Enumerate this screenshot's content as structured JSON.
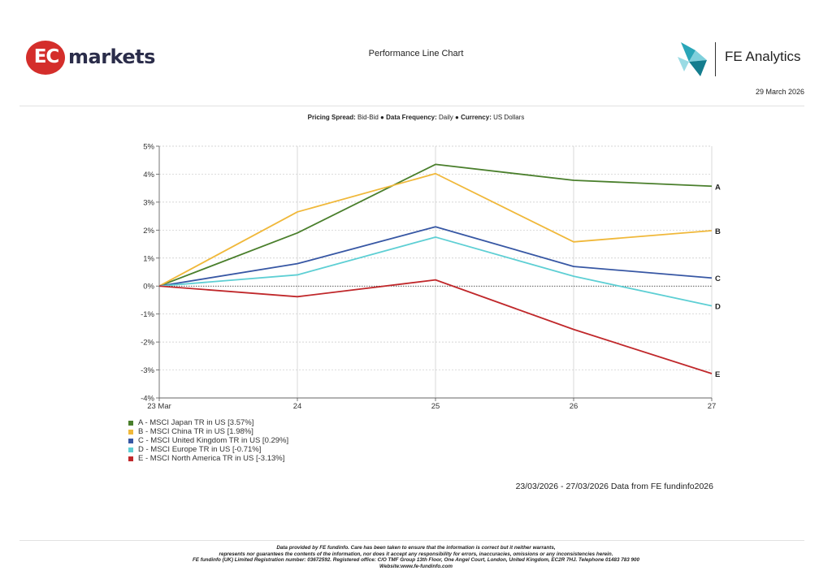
{
  "header": {
    "ec_logo_letters": "EC",
    "ec_logo_word": "markets",
    "title": "Performance Line Chart",
    "fe_logo_text": "FE Analytics",
    "date": "29 March 2026"
  },
  "params": {
    "pricing_label": "Pricing Spread:",
    "pricing_value": " Bid-Bid",
    "bullet1": " ● ",
    "freq_label": "Data Frequency:",
    "freq_value": " Daily",
    "bullet2": " ● ",
    "currency_label": "Currency:",
    "currency_value": " US Dollars"
  },
  "chart_data": {
    "type": "line",
    "categories": [
      "23 Mar",
      "24",
      "25",
      "26",
      "27"
    ],
    "ylim": [
      -4,
      5
    ],
    "yticks": [
      5,
      4,
      3,
      2,
      1,
      0,
      -1,
      -2,
      -3,
      -4
    ],
    "ytick_labels": [
      "5%",
      "4%",
      "3%",
      "2%",
      "1%",
      "0%",
      "-1%",
      "-2%",
      "-3%",
      "-4%"
    ],
    "series": [
      {
        "name": "A",
        "color": "#4a7f2c",
        "values": [
          0,
          1.9,
          4.35,
          3.78,
          3.57
        ]
      },
      {
        "name": "B",
        "color": "#f0b83a",
        "values": [
          0,
          2.65,
          4.02,
          1.58,
          1.98
        ]
      },
      {
        "name": "C",
        "color": "#3757a4",
        "values": [
          0,
          0.8,
          2.12,
          0.7,
          0.29
        ]
      },
      {
        "name": "D",
        "color": "#5ecfd4",
        "values": [
          0,
          0.4,
          1.75,
          0.35,
          -0.71
        ]
      },
      {
        "name": "E",
        "color": "#c0282b",
        "values": [
          0,
          -0.38,
          0.22,
          -1.55,
          -3.13
        ]
      }
    ]
  },
  "legend": {
    "items": [
      {
        "label": "A - MSCI Japan TR in US [3.57%]",
        "color": "#4a7f2c"
      },
      {
        "label": "B - MSCI China TR in US [1.98%]",
        "color": "#f0b83a"
      },
      {
        "label": "C - MSCI United Kingdom TR in US [0.29%]",
        "color": "#3757a4"
      },
      {
        "label": "D - MSCI Europe TR in US [-0.71%]",
        "color": "#5ecfd4"
      },
      {
        "label": "E - MSCI North America TR in US [-3.13%]",
        "color": "#c0282b"
      }
    ]
  },
  "source": "23/03/2026 - 27/03/2026 Data from FE fundinfo2026",
  "footer": {
    "line1": "Data provided by FE fundinfo. Care has been taken to ensure that the information is correct but it neither warrants,",
    "line2": "represents nor guarantees the contents of the information, nor does it accept any responsibility for errors, inaccuracies, omissions or any inconsistencies herein.",
    "line3": "FE fundinfo (UK) Limited Registration number: 03672592. Registered office: C/O TMF Group 13th Floor, One Angel Court, London, United Kingdom, EC2R 7HJ. Telephone 01483 783 900",
    "line4": "Website:www.fe-fundinfo.com"
  }
}
